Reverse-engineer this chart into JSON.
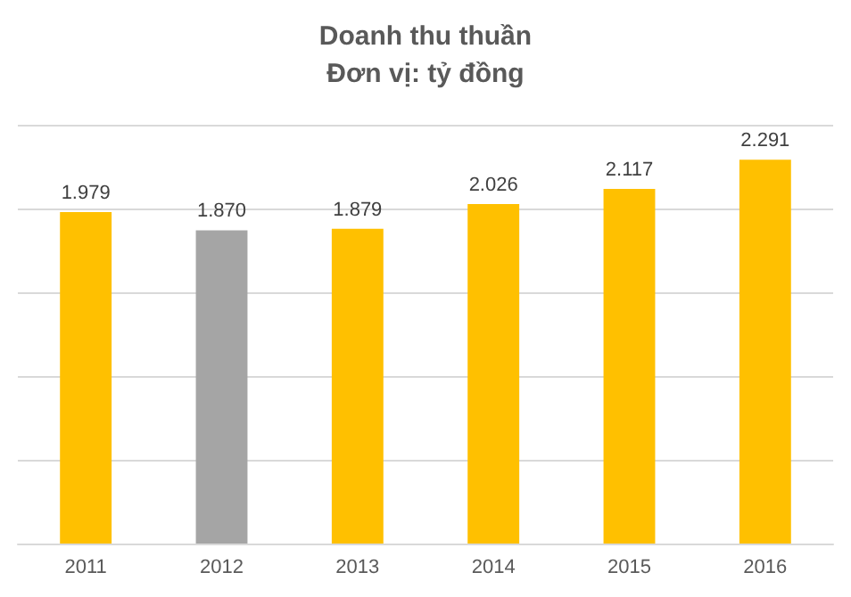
{
  "chart_data": {
    "type": "bar",
    "title": "Doanh thu thuần",
    "subtitle": "Đơn vị: tỷ đồng",
    "categories": [
      "2011",
      "2012",
      "2013",
      "2014",
      "2015",
      "2016"
    ],
    "values": [
      1979,
      1870,
      1879,
      2026,
      2117,
      2291
    ],
    "colors": [
      "#ffc000",
      "#a5a5a5",
      "#ffc000",
      "#ffc000",
      "#ffc000",
      "#ffc000"
    ],
    "value_labels": [
      "1.979",
      "1.870",
      "1.879",
      "2.026",
      "2.117",
      "2.291"
    ],
    "ylim": [
      0,
      2500
    ],
    "yticks": [
      {
        "value": 0,
        "label": null
      },
      {
        "value": 500,
        "label": null
      },
      {
        "value": 1000,
        "label": null
      },
      {
        "value": 1500,
        "label": null
      },
      {
        "value": 2000,
        "label": null
      },
      {
        "value": 2500,
        "label": null
      }
    ],
    "grid": "y",
    "tick_labels": "x"
  }
}
